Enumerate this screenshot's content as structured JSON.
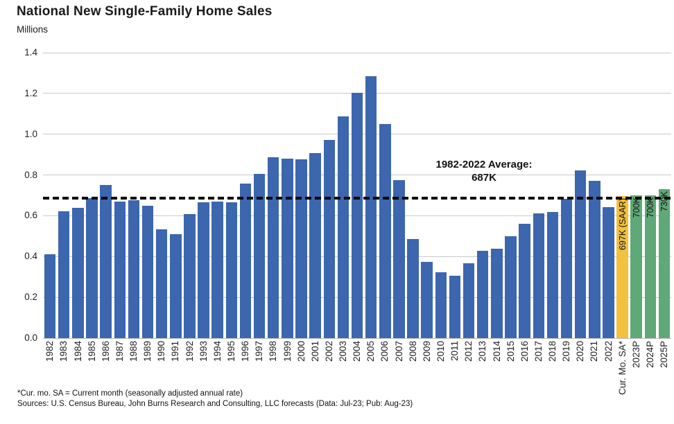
{
  "header": {
    "title": "National New Single-Family Home Sales",
    "units_label": "Millions"
  },
  "chart_data": {
    "type": "bar",
    "title": "National New Single-Family Home Sales",
    "ylabel": "Millions",
    "ylim": [
      0,
      1.4
    ],
    "ytick_step": 0.2,
    "grid": true,
    "legend": "none",
    "values_unit": "millions of homes (SAAR)",
    "average_line": {
      "value": 0.687,
      "label_lines": [
        "1982-2022 Average:",
        "687K"
      ]
    },
    "colors": {
      "default": "#3C66AE",
      "current": "#F2C13D",
      "forecast": "#5FA877",
      "average_line": "#000000",
      "gridline": "#C9C9C9",
      "axis_line": "#B7B7B7"
    },
    "points": [
      {
        "label": "1982",
        "value": 0.412
      },
      {
        "label": "1983",
        "value": 0.623
      },
      {
        "label": "1984",
        "value": 0.639
      },
      {
        "label": "1985",
        "value": 0.688
      },
      {
        "label": "1986",
        "value": 0.75
      },
      {
        "label": "1987",
        "value": 0.671
      },
      {
        "label": "1988",
        "value": 0.676
      },
      {
        "label": "1989",
        "value": 0.65
      },
      {
        "label": "1990",
        "value": 0.534
      },
      {
        "label": "1991",
        "value": 0.509
      },
      {
        "label": "1992",
        "value": 0.61
      },
      {
        "label": "1993",
        "value": 0.666
      },
      {
        "label": "1994",
        "value": 0.67
      },
      {
        "label": "1995",
        "value": 0.667
      },
      {
        "label": "1996",
        "value": 0.757
      },
      {
        "label": "1997",
        "value": 0.804
      },
      {
        "label": "1998",
        "value": 0.886
      },
      {
        "label": "1999",
        "value": 0.88
      },
      {
        "label": "2000",
        "value": 0.877
      },
      {
        "label": "2001",
        "value": 0.908
      },
      {
        "label": "2002",
        "value": 0.973
      },
      {
        "label": "2003",
        "value": 1.086
      },
      {
        "label": "2004",
        "value": 1.203
      },
      {
        "label": "2005",
        "value": 1.283
      },
      {
        "label": "2006",
        "value": 1.051
      },
      {
        "label": "2007",
        "value": 0.776
      },
      {
        "label": "2008",
        "value": 0.485
      },
      {
        "label": "2009",
        "value": 0.375
      },
      {
        "label": "2010",
        "value": 0.323
      },
      {
        "label": "2011",
        "value": 0.306
      },
      {
        "label": "2012",
        "value": 0.368
      },
      {
        "label": "2013",
        "value": 0.429
      },
      {
        "label": "2014",
        "value": 0.437
      },
      {
        "label": "2015",
        "value": 0.501
      },
      {
        "label": "2016",
        "value": 0.561
      },
      {
        "label": "2017",
        "value": 0.613
      },
      {
        "label": "2018",
        "value": 0.617
      },
      {
        "label": "2019",
        "value": 0.683
      },
      {
        "label": "2020",
        "value": 0.822
      },
      {
        "label": "2021",
        "value": 0.771
      },
      {
        "label": "2022",
        "value": 0.641
      },
      {
        "label": "Cur. Mo. SA*",
        "value": 0.697,
        "type": "current",
        "bar_label": "697K (SAAR)"
      },
      {
        "label": "2023P",
        "value": 0.7,
        "type": "forecast",
        "bar_label": "700K"
      },
      {
        "label": "2024P",
        "value": 0.7,
        "type": "forecast",
        "bar_label": "700K"
      },
      {
        "label": "2025P",
        "value": 0.73,
        "type": "forecast",
        "bar_label": "730K"
      }
    ]
  },
  "footnotes": {
    "line1": "*Cur. mo. SA = Current month (seasonally adjusted annual rate)",
    "line2": "Sources: U.S. Census Bureau, John Burns Research and Consulting, LLC forecasts (Data: Jul-23; Pub: Aug-23)"
  }
}
